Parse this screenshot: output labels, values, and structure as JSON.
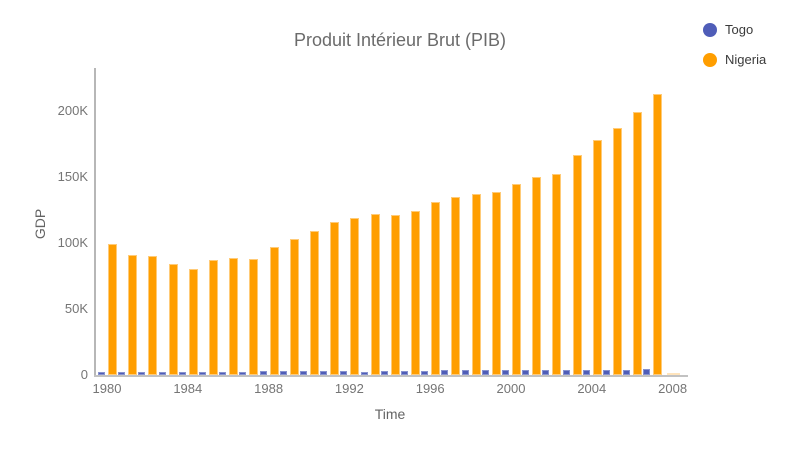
{
  "title": "Produit Intérieur Brut (PIB)",
  "legend": {
    "items": [
      {
        "label": "Togo",
        "color": "#4f5db8"
      },
      {
        "label": "Nigeria",
        "color": "#ff9e00"
      }
    ]
  },
  "axes": {
    "x": {
      "title": "Time",
      "tick_labels": [
        "1980",
        "1984",
        "1988",
        "1992",
        "1996",
        "2000",
        "2004",
        "2008"
      ]
    },
    "y": {
      "title": "GDP",
      "tick_labels": [
        "0",
        "50K",
        "100K",
        "150K",
        "200K"
      ]
    }
  },
  "colors": {
    "togo": "#4f5db8",
    "nigeria": "#ff9e00",
    "partial_bar": "#ffe4bc",
    "axis_line": "#b7b7b7",
    "tick_text": "#757575",
    "title_text": "#6b6b6b"
  },
  "chart_data": {
    "type": "bar",
    "title": "Produit Intérieur Brut (PIB)",
    "xlabel": "Time",
    "ylabel": "GDP",
    "x": [
      1980,
      1981,
      1982,
      1983,
      1984,
      1985,
      1986,
      1987,
      1988,
      1989,
      1990,
      1991,
      1992,
      1993,
      1994,
      1995,
      1996,
      1997,
      1998,
      1999,
      2000,
      2001,
      2002,
      2003,
      2004,
      2005,
      2006,
      2007
    ],
    "series": [
      {
        "name": "Togo",
        "color": "#4f5db8",
        "values": [
          2600,
          2500,
          2300,
          2200,
          2400,
          2500,
          2600,
          2600,
          2800,
          2900,
          2900,
          2900,
          2700,
          2200,
          2900,
          3100,
          3300,
          3700,
          3500,
          3600,
          3500,
          3500,
          3600,
          3800,
          3900,
          4000,
          4100,
          4300
        ]
      },
      {
        "name": "Nigeria",
        "color": "#ff9e00",
        "values": [
          99000,
          91000,
          90000,
          84000,
          80000,
          87000,
          89000,
          88000,
          97000,
          103000,
          109000,
          116000,
          119000,
          122000,
          121000,
          124000,
          131000,
          135000,
          137000,
          139000,
          145000,
          150000,
          152000,
          167000,
          178000,
          187000,
          199000,
          213000
        ]
      }
    ],
    "partial_bar": {
      "x": 2008,
      "series": "Nigeria",
      "value": 1500,
      "color": "#ffe4bc",
      "note": "faded partial bar at 2008"
    },
    "ylim": [
      0,
      220000
    ],
    "yticks": [
      0,
      50000,
      100000,
      150000,
      200000
    ],
    "xticks": [
      1980,
      1984,
      1988,
      1992,
      1996,
      2000,
      2004,
      2008
    ],
    "grid": false,
    "legend_position": "top-right"
  }
}
